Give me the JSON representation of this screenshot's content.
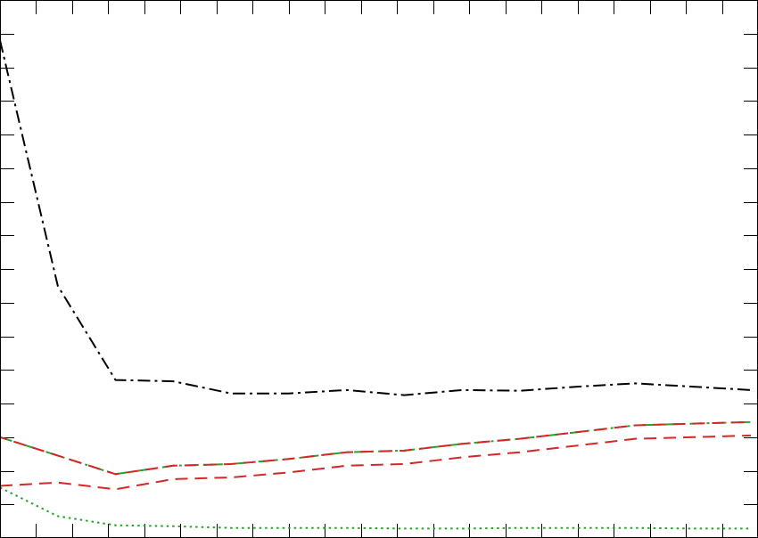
{
  "chart_data": {
    "type": "line",
    "title": "",
    "xlabel": "",
    "ylabel": "",
    "xlim": [
      0,
      21
    ],
    "ylim": [
      0,
      16
    ],
    "grid": false,
    "legend": "none",
    "x_ticks": [
      0,
      1,
      2,
      3,
      4,
      5,
      6,
      7,
      8,
      9,
      10,
      11,
      12,
      13,
      14,
      15,
      16,
      17,
      18,
      19,
      20,
      21
    ],
    "y_ticks": [
      0,
      1,
      2,
      3,
      4,
      5,
      6,
      7,
      8,
      9,
      10,
      11,
      12,
      13,
      14,
      15,
      16
    ],
    "x": [
      0,
      1.6,
      3.2,
      4.8,
      6.4,
      8.0,
      9.6,
      11.2,
      12.8,
      14.4,
      16.0,
      17.6,
      19.2,
      20.8
    ],
    "series": [
      {
        "style": "dashdot",
        "color": "#000000",
        "values": [
          14.8,
          7.5,
          4.7,
          4.66,
          4.3,
          4.3,
          4.4,
          4.25,
          4.4,
          4.38,
          4.5,
          4.6,
          4.5,
          4.4
        ]
      },
      {
        "style": "dashdot",
        "color": "#2ca02c",
        "values": [
          3.0,
          2.45,
          1.9,
          2.15,
          2.2,
          2.35,
          2.55,
          2.6,
          2.8,
          2.95,
          3.15,
          3.35,
          3.4,
          3.45
        ]
      },
      {
        "style": "dashed",
        "color": "#d62728",
        "values": [
          3.0,
          2.45,
          1.9,
          2.15,
          2.2,
          2.35,
          2.55,
          2.6,
          2.8,
          2.95,
          3.15,
          3.35,
          3.4,
          3.45
        ]
      },
      {
        "style": "dashed",
        "color": "#d62728",
        "values": [
          1.55,
          1.65,
          1.45,
          1.75,
          1.8,
          1.95,
          2.15,
          2.2,
          2.4,
          2.55,
          2.75,
          2.95,
          3.0,
          3.05
        ]
      },
      {
        "style": "dotted",
        "color": "#2ca02c",
        "values": [
          1.5,
          0.65,
          0.38,
          0.35,
          0.3,
          0.3,
          0.3,
          0.28,
          0.28,
          0.3,
          0.3,
          0.3,
          0.28,
          0.28
        ]
      }
    ]
  }
}
